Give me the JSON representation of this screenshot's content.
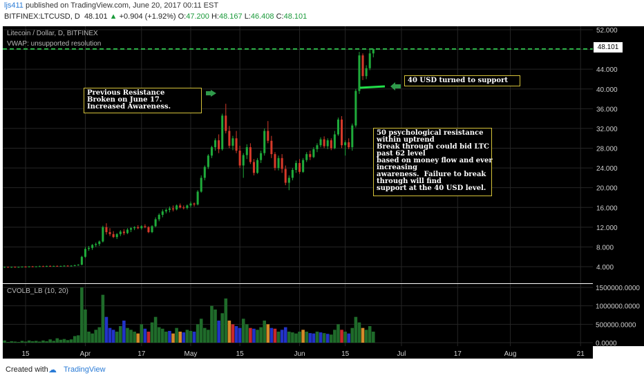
{
  "header": {
    "user": "ljs411",
    "published": " published on TradingView.com, June 20, 2017 00:11 EST",
    "symbol": "BITFINEX:LTCUSD, D",
    "price": "48.101",
    "change": "+0.904 (+1.92%)",
    "o_label": "O:",
    "o_val": "47.200",
    "h_label": "H:",
    "h_val": "48.167",
    "l_label": "L:",
    "l_val": "46.408",
    "c_label": "C:",
    "c_val": "48.101"
  },
  "legend": {
    "title": "Litecoin / Dollar, D, BITFINEX",
    "vwap": "VWAP: unsupported resolution",
    "vol_indicator": "CVOLB_LB (10, 20)"
  },
  "annotations": {
    "resistance": "Previous Resistance\nBroken on June 17.\nIncreased Awareness.",
    "support": "40 USD turned to support",
    "psych": "50 psychological resistance\nwithin uptrend\nBreak through could bid LTC\npast 62 level\nbased on money flow and ever\nincreasing\nawareness.  Failure to break\nthrough will find\nsupport at the 40 USD level."
  },
  "price_label": "48.101",
  "footer": {
    "created": "Created with",
    "brand": "TradingView"
  },
  "colors": {
    "up": "#1faa3a",
    "down": "#d63a2a",
    "bg": "#000000",
    "grid": "#262626",
    "annot_border": "#d6c33a",
    "vwap": "#2db84a"
  },
  "chart_data": {
    "type": "candlestick",
    "y_ticks": [
      "52.000",
      "48.000",
      "44.000",
      "40.000",
      "36.000",
      "32.000",
      "28.000",
      "24.000",
      "20.000",
      "16.000",
      "12.000",
      "8.000",
      "4.000"
    ],
    "ylim": [
      0,
      53
    ],
    "vol_ticks": [
      "1500000.0000",
      "1000000.0000",
      "500000.0000",
      "0.0000"
    ],
    "vol_lim": [
      0,
      1600000
    ],
    "x_ticks": [
      {
        "label": "15",
        "i": 6
      },
      {
        "label": "Apr",
        "i": 23
      },
      {
        "label": "17",
        "i": 39
      },
      {
        "label": "May",
        "i": 53
      },
      {
        "label": "15",
        "i": 67
      },
      {
        "label": "Jun",
        "i": 84
      },
      {
        "label": "15",
        "i": 97
      },
      {
        "label": "Jul",
        "i": 113
      },
      {
        "label": "17",
        "i": 129
      },
      {
        "label": "Aug",
        "i": 144
      },
      {
        "label": "21",
        "i": 164
      }
    ],
    "n_slots": 168,
    "candles": [
      [
        3.9,
        4.0,
        3.8,
        3.95
      ],
      [
        3.95,
        4.0,
        3.85,
        3.9
      ],
      [
        3.9,
        4.0,
        3.8,
        3.95
      ],
      [
        3.95,
        4.05,
        3.85,
        3.9
      ],
      [
        3.9,
        4.0,
        3.8,
        3.95
      ],
      [
        3.95,
        4.05,
        3.85,
        4.0
      ],
      [
        4.0,
        4.1,
        3.9,
        3.95
      ],
      [
        3.95,
        4.1,
        3.85,
        4.05
      ],
      [
        4.05,
        4.15,
        3.9,
        4.0
      ],
      [
        4.0,
        4.1,
        3.9,
        4.05
      ],
      [
        4.05,
        4.2,
        3.95,
        4.1
      ],
      [
        4.1,
        4.2,
        4.0,
        4.05
      ],
      [
        4.05,
        4.2,
        3.95,
        4.15
      ],
      [
        4.15,
        4.25,
        4.0,
        4.1
      ],
      [
        4.1,
        4.2,
        4.0,
        4.15
      ],
      [
        4.15,
        4.25,
        4.05,
        4.1
      ],
      [
        4.1,
        4.2,
        4.0,
        4.15
      ],
      [
        4.15,
        4.3,
        4.05,
        4.2
      ],
      [
        4.2,
        4.3,
        4.05,
        4.15
      ],
      [
        4.15,
        4.3,
        4.05,
        4.2
      ],
      [
        4.2,
        4.4,
        4.1,
        4.3
      ],
      [
        4.3,
        4.5,
        4.2,
        4.4
      ],
      [
        4.4,
        6.2,
        4.3,
        6.0
      ],
      [
        6.0,
        8.0,
        5.8,
        7.6
      ],
      [
        7.6,
        8.2,
        7.2,
        7.8
      ],
      [
        7.8,
        8.6,
        7.4,
        8.4
      ],
      [
        8.4,
        8.9,
        8.0,
        8.6
      ],
      [
        8.6,
        9.3,
        8.2,
        9.1
      ],
      [
        9.1,
        12.3,
        8.9,
        12.0
      ],
      [
        12.0,
        12.8,
        10.5,
        11.0
      ],
      [
        11.0,
        11.8,
        10.2,
        10.6
      ],
      [
        10.6,
        11.2,
        9.8,
        10.0
      ],
      [
        10.0,
        10.8,
        9.6,
        10.6
      ],
      [
        10.6,
        11.4,
        10.2,
        11.1
      ],
      [
        11.1,
        11.6,
        10.4,
        10.8
      ],
      [
        10.8,
        11.8,
        10.6,
        11.5
      ],
      [
        11.5,
        12.0,
        11.0,
        11.8
      ],
      [
        11.8,
        12.2,
        11.4,
        12.0
      ],
      [
        12.0,
        12.4,
        11.6,
        11.8
      ],
      [
        11.8,
        12.4,
        11.5,
        12.2
      ],
      [
        12.2,
        12.6,
        11.8,
        12.0
      ],
      [
        12.0,
        12.2,
        10.8,
        11.0
      ],
      [
        11.0,
        12.4,
        10.8,
        12.2
      ],
      [
        12.2,
        14.0,
        12.0,
        13.6
      ],
      [
        13.6,
        14.8,
        13.2,
        14.5
      ],
      [
        14.5,
        15.6,
        14.0,
        15.2
      ],
      [
        15.2,
        15.8,
        14.8,
        15.5
      ],
      [
        15.5,
        16.2,
        15.0,
        15.8
      ],
      [
        15.8,
        16.4,
        15.2,
        15.6
      ],
      [
        15.6,
        16.6,
        15.4,
        16.4
      ],
      [
        16.4,
        16.8,
        15.8,
        16.0
      ],
      [
        16.0,
        16.4,
        15.6,
        15.9
      ],
      [
        15.9,
        16.6,
        15.6,
        16.4
      ],
      [
        16.4,
        17.2,
        16.0,
        16.8
      ],
      [
        16.8,
        17.0,
        16.2,
        16.6
      ],
      [
        16.6,
        19.5,
        16.4,
        19.2
      ],
      [
        19.2,
        22.5,
        19.0,
        22.0
      ],
      [
        22.0,
        24.5,
        21.5,
        24.2
      ],
      [
        24.2,
        26.8,
        23.8,
        26.5
      ],
      [
        26.5,
        28.5,
        26.0,
        28.2
      ],
      [
        28.2,
        30.0,
        27.5,
        29.6
      ],
      [
        29.6,
        30.8,
        27.0,
        27.8
      ],
      [
        27.8,
        35.0,
        27.5,
        34.6
      ],
      [
        34.6,
        37.0,
        31.0,
        31.5
      ],
      [
        31.5,
        32.5,
        28.0,
        28.5
      ],
      [
        28.5,
        30.5,
        27.6,
        30.0
      ],
      [
        30.0,
        31.5,
        27.0,
        27.5
      ],
      [
        27.5,
        28.5,
        24.0,
        24.5
      ],
      [
        24.5,
        27.0,
        22.0,
        26.6
      ],
      [
        26.6,
        28.8,
        25.8,
        28.2
      ],
      [
        28.2,
        29.0,
        24.8,
        25.2
      ],
      [
        25.2,
        25.8,
        22.5,
        23.0
      ],
      [
        23.0,
        26.0,
        22.8,
        25.6
      ],
      [
        25.6,
        27.5,
        25.0,
        27.0
      ],
      [
        27.0,
        32.0,
        26.5,
        31.5
      ],
      [
        31.5,
        33.5,
        29.0,
        29.5
      ],
      [
        29.5,
        30.5,
        26.0,
        26.8
      ],
      [
        26.8,
        27.2,
        23.5,
        24.0
      ],
      [
        24.0,
        26.5,
        23.5,
        26.0
      ],
      [
        26.0,
        26.8,
        23.0,
        23.8
      ],
      [
        23.8,
        24.5,
        20.5,
        21.0
      ],
      [
        21.0,
        22.5,
        19.5,
        22.0
      ],
      [
        22.0,
        24.0,
        21.5,
        23.6
      ],
      [
        23.6,
        25.5,
        23.0,
        25.0
      ],
      [
        25.0,
        25.8,
        22.8,
        23.2
      ],
      [
        23.2,
        26.0,
        23.0,
        25.6
      ],
      [
        25.6,
        27.2,
        25.2,
        26.8
      ],
      [
        26.8,
        27.5,
        25.6,
        26.2
      ],
      [
        26.2,
        28.2,
        26.0,
        27.8
      ],
      [
        27.8,
        29.0,
        27.2,
        28.6
      ],
      [
        28.6,
        30.2,
        28.2,
        29.8
      ],
      [
        29.8,
        30.4,
        28.0,
        28.4
      ],
      [
        28.4,
        30.0,
        27.8,
        29.6
      ],
      [
        29.6,
        30.0,
        27.6,
        28.0
      ],
      [
        28.0,
        31.5,
        27.8,
        30.8
      ],
      [
        30.8,
        34.2,
        30.5,
        33.8
      ],
      [
        33.8,
        34.5,
        28.0,
        28.6
      ],
      [
        28.6,
        29.6,
        26.5,
        29.2
      ],
      [
        29.2,
        30.0,
        27.8,
        28.2
      ],
      [
        28.2,
        33.0,
        27.5,
        32.6
      ],
      [
        32.6,
        40.0,
        32.2,
        39.6
      ],
      [
        39.6,
        47.5,
        39.0,
        46.8
      ],
      [
        46.8,
        47.2,
        41.8,
        42.6
      ],
      [
        42.6,
        44.8,
        42.0,
        44.2
      ],
      [
        44.2,
        48.2,
        43.8,
        47.2
      ],
      [
        47.2,
        48.17,
        46.4,
        48.1
      ]
    ],
    "volumes": [
      60000,
      20000,
      40000,
      30000,
      20000,
      50000,
      30000,
      60000,
      40000,
      50000,
      30000,
      60000,
      40000,
      90000,
      50000,
      120000,
      80000,
      100000,
      70000,
      90000,
      180000,
      200000,
      1500000,
      900000,
      300000,
      250000,
      350000,
      420000,
      1300000,
      700000,
      400000,
      350000,
      300000,
      450000,
      600000,
      400000,
      350000,
      300000,
      250000,
      500000,
      380000,
      300000,
      550000,
      700000,
      420000,
      380000,
      300000,
      320000,
      250000,
      400000,
      300000,
      280000,
      350000,
      320000,
      300000,
      500000,
      650000,
      400000,
      350000,
      1000000,
      900000,
      600000,
      800000,
      1200000,
      600000,
      500000,
      450000,
      400000,
      650000,
      500000,
      400000,
      380000,
      350000,
      420000,
      600000,
      500000,
      400000,
      380000,
      300000,
      350000,
      420000,
      300000,
      280000,
      250000,
      300000,
      350000,
      300000,
      260000,
      250000,
      300000,
      280000,
      260000,
      240000,
      220000,
      350000,
      500000,
      350000,
      300000,
      250000,
      400000,
      700000,
      550000,
      400000,
      350000,
      450000,
      300000
    ],
    "vol_colors": [
      "g",
      "g",
      "g",
      "g",
      "g",
      "g",
      "g",
      "g",
      "g",
      "g",
      "g",
      "g",
      "g",
      "g",
      "g",
      "g",
      "g",
      "g",
      "g",
      "g",
      "g",
      "g",
      "g",
      "g",
      "g",
      "g",
      "g",
      "g",
      "g",
      "b",
      "b",
      "b",
      "g",
      "g",
      "b",
      "g",
      "g",
      "g",
      "o",
      "g",
      "b",
      "r",
      "g",
      "g",
      "g",
      "g",
      "g",
      "b",
      "o",
      "g",
      "o",
      "b",
      "g",
      "g",
      "b",
      "g",
      "g",
      "g",
      "g",
      "g",
      "g",
      "b",
      "g",
      "g",
      "o",
      "r",
      "b",
      "b",
      "g",
      "g",
      "r",
      "b",
      "g",
      "g",
      "g",
      "o",
      "b",
      "r",
      "g",
      "b",
      "b",
      "g",
      "g",
      "g",
      "g",
      "o",
      "g",
      "b",
      "b",
      "g",
      "b",
      "g",
      "b",
      "g",
      "g",
      "g",
      "r",
      "g",
      "b",
      "g",
      "g",
      "g",
      "o",
      "g",
      "g",
      "g"
    ]
  }
}
